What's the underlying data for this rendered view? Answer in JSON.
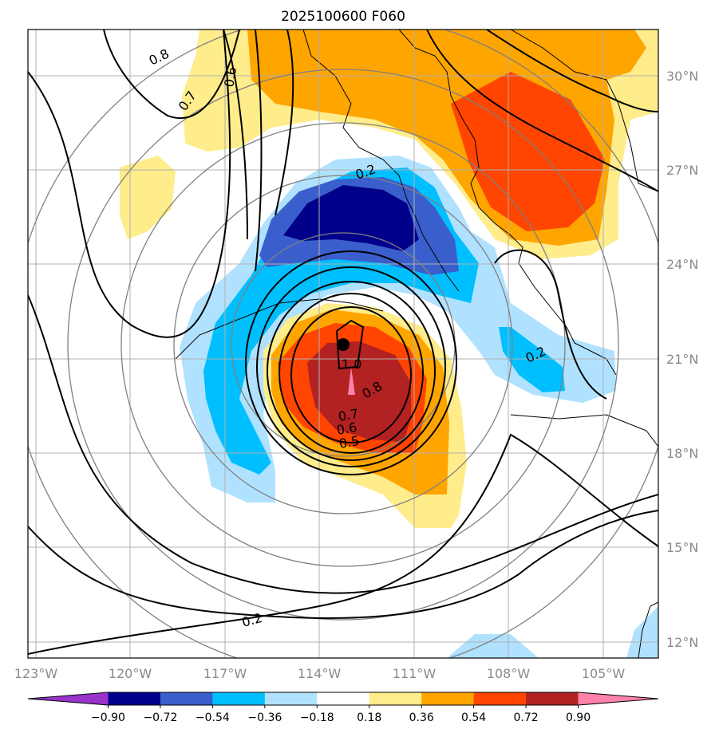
{
  "title": "2025100600 F060",
  "map": {
    "lon_range": [
      -123.2,
      -103.0
    ],
    "lat_range": [
      11.5,
      31.5
    ],
    "lon_ticks": [
      "123°W",
      "120°W",
      "117°W",
      "114°W",
      "111°W",
      "108°W",
      "105°W"
    ],
    "lat_ticks": [
      "30°N",
      "27°N",
      "24°N",
      "21°N",
      "18°N",
      "15°N",
      "12°N"
    ],
    "gridlines": true,
    "center_marker": {
      "lon": -113.0,
      "lat": 21.5
    }
  },
  "colorbar": {
    "ticks": [
      "−0.90",
      "−0.72",
      "−0.54",
      "−0.36",
      "−0.18",
      "0.18",
      "0.36",
      "0.54",
      "0.72",
      "0.90"
    ],
    "colors": [
      "#9933cc",
      "#00008b",
      "#3a5fcd",
      "#00bfff",
      "#b0e2ff",
      "#ffffff",
      "#ffec8b",
      "#ffa500",
      "#ff4500",
      "#b22222",
      "#ff82ab"
    ],
    "extend": "both"
  },
  "contour_labels": [
    "0.8",
    "0.7",
    "0.6",
    "0.2",
    "0.2",
    "1.0",
    "0.8",
    "0.7",
    "0.6",
    "0.5",
    "0.2"
  ]
}
